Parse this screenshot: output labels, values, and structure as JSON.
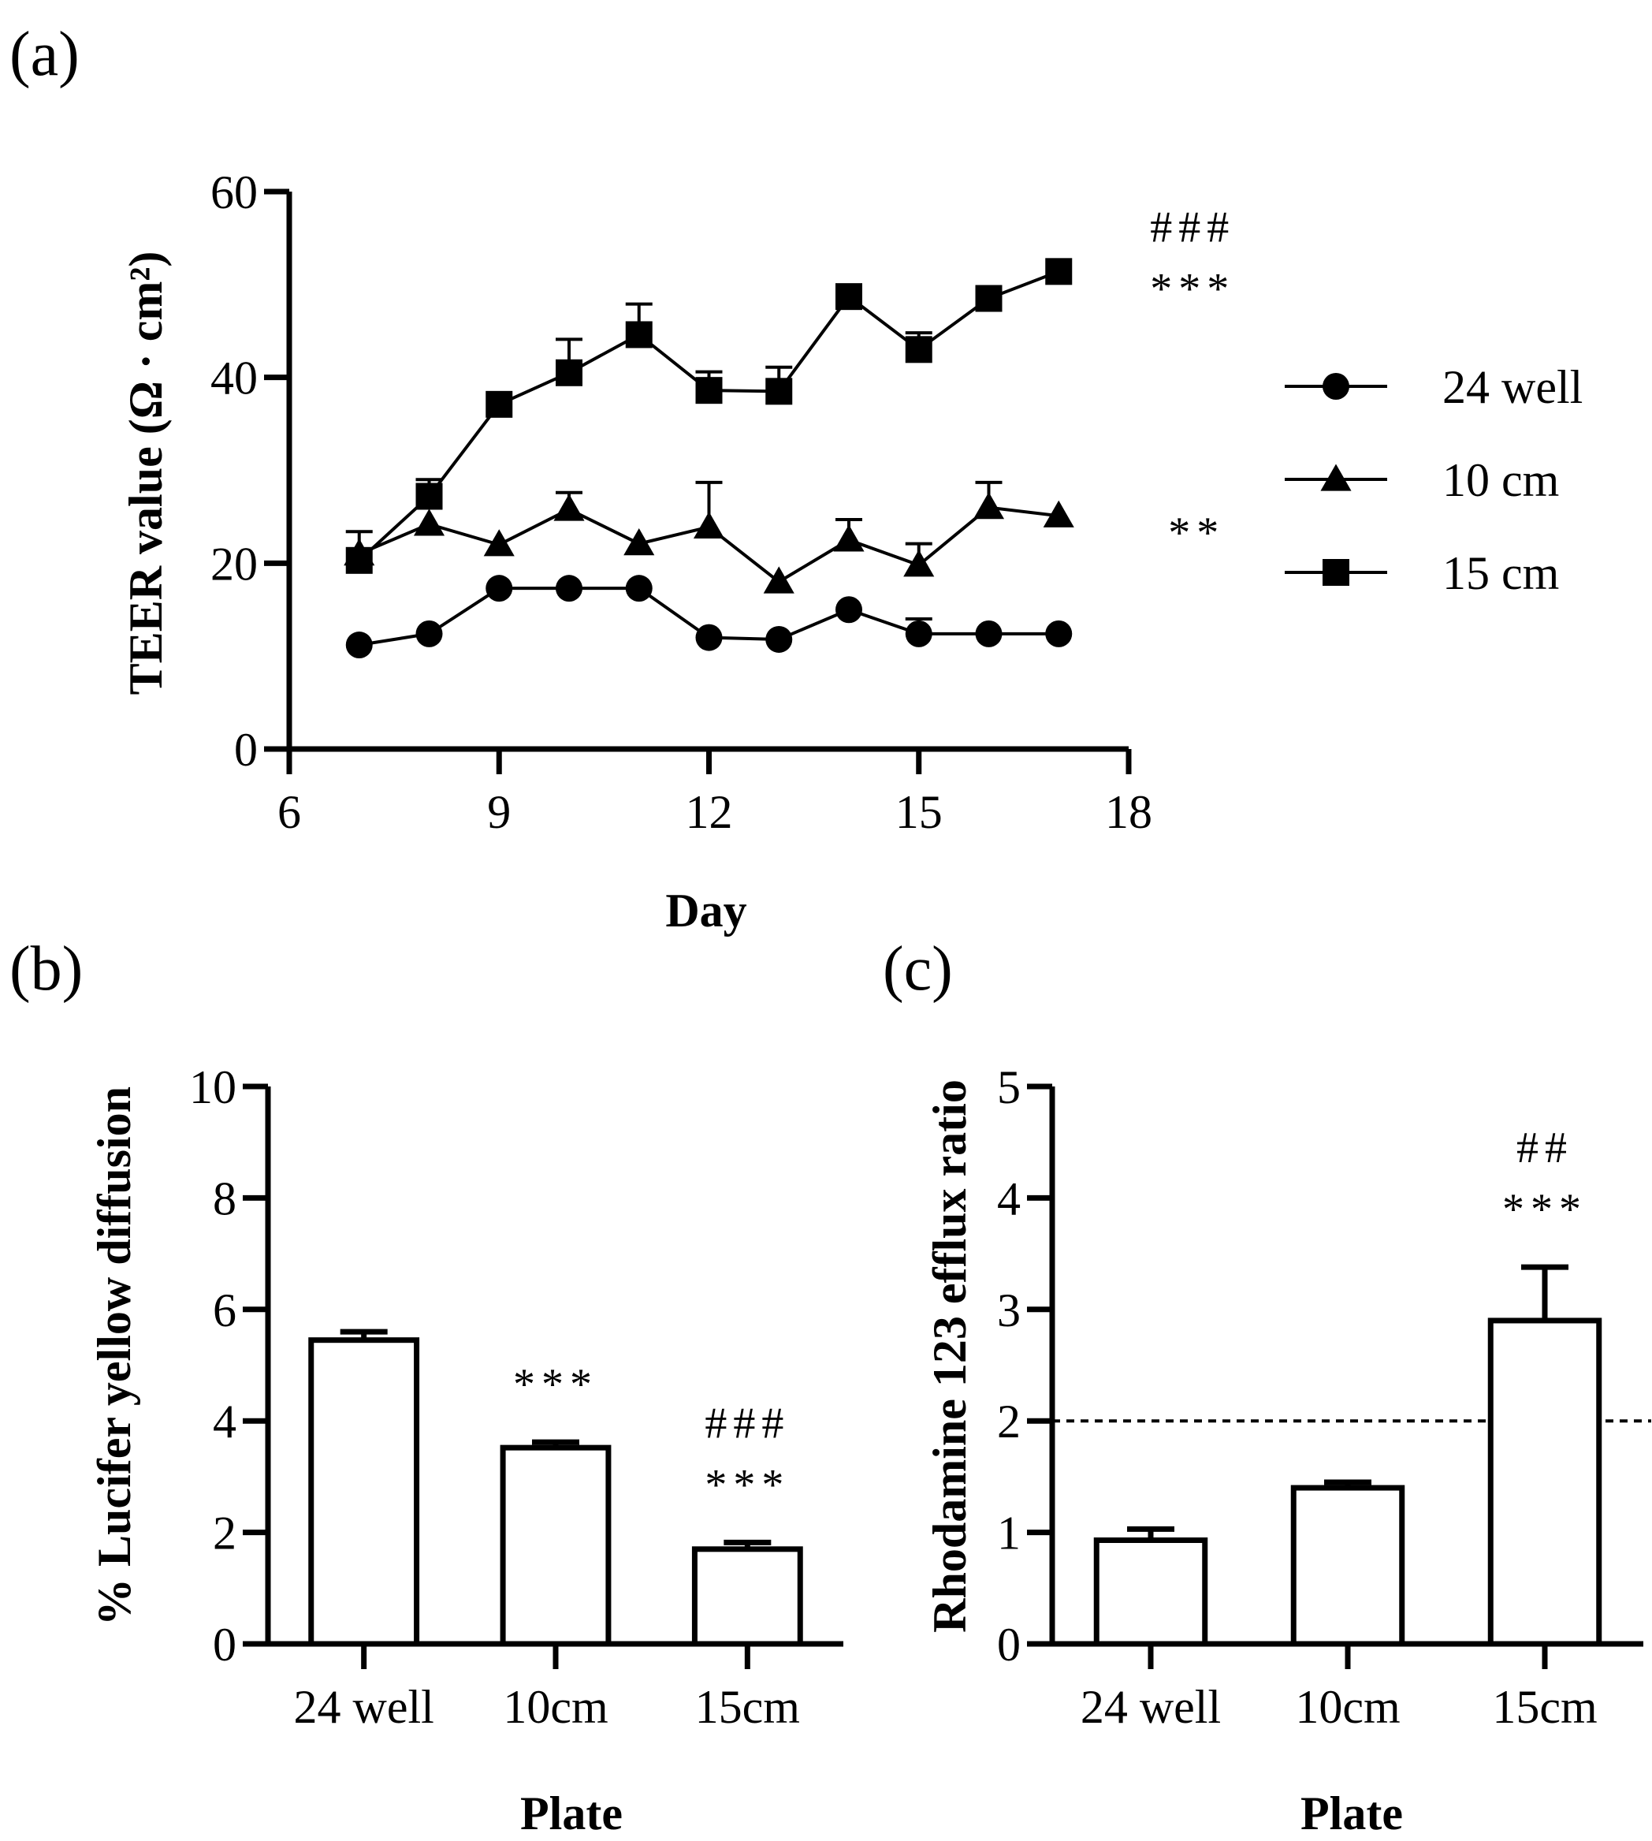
{
  "chart_data": [
    {
      "id": "a",
      "panel_label": "(a)",
      "type": "line",
      "xlabel": "Day",
      "ylabel": "TEER value (Ω · cm²)",
      "xlim": [
        6,
        18
      ],
      "ylim": [
        0,
        60
      ],
      "xticks": [
        6,
        9,
        12,
        15,
        18
      ],
      "yticks": [
        0,
        20,
        40,
        60
      ],
      "x": [
        7,
        8,
        9,
        10,
        11,
        12,
        13,
        14,
        15,
        16,
        17
      ],
      "series": [
        {
          "name": "24 well",
          "marker": "circle",
          "values": [
            11.2,
            12.4,
            17.3,
            17.3,
            17.3,
            12.0,
            11.8,
            15.0,
            12.4,
            12.4,
            12.4
          ],
          "errors": [
            0,
            0,
            0,
            0,
            0,
            0,
            0,
            0,
            1.6,
            0,
            0
          ]
        },
        {
          "name": "10 cm",
          "marker": "triangle",
          "values": [
            21.0,
            24.2,
            22.0,
            25.8,
            22.1,
            23.9,
            18.0,
            22.5,
            19.8,
            26.0,
            25.1
          ],
          "errors": [
            0,
            0,
            0,
            1.8,
            0,
            4.8,
            0,
            2.2,
            2.3,
            2.7,
            0
          ]
        },
        {
          "name": "15 cm",
          "marker": "square",
          "values": [
            20.3,
            27.2,
            37.1,
            40.5,
            44.6,
            38.6,
            38.5,
            48.7,
            43.0,
            48.5,
            51.4
          ],
          "errors": [
            3.1,
            1.8,
            0,
            3.6,
            3.3,
            2.0,
            2.6,
            1.2,
            1.8,
            0,
            0
          ]
        }
      ],
      "annotations": [
        {
          "text": "###",
          "near_series": "15 cm"
        },
        {
          "text": "***",
          "near_series": "15 cm"
        },
        {
          "text": "**",
          "near_series": "10 cm"
        }
      ],
      "legend": {
        "position": "right",
        "entries": [
          "24 well",
          "10 cm",
          "15 cm"
        ]
      }
    },
    {
      "id": "b",
      "panel_label": "(b)",
      "type": "bar",
      "xlabel": "Plate",
      "ylabel": "% Lucifer yellow diffusion",
      "ylim": [
        0,
        10
      ],
      "yticks": [
        0,
        2,
        4,
        6,
        8,
        10
      ],
      "categories": [
        "24 well",
        "10cm",
        "15cm"
      ],
      "values": [
        5.45,
        3.52,
        1.7
      ],
      "errors": [
        0.15,
        0.1,
        0.12
      ],
      "annotations": [
        {
          "category": "10cm",
          "lines": [
            "***"
          ]
        },
        {
          "category": "15cm",
          "lines": [
            "###",
            "***"
          ]
        }
      ]
    },
    {
      "id": "c",
      "panel_label": "(c)",
      "type": "bar",
      "xlabel": "Plate",
      "ylabel": "Rhodamine 123 efflux ratio",
      "ylim": [
        0,
        5
      ],
      "yticks": [
        0,
        1,
        2,
        3,
        4,
        5
      ],
      "categories": [
        "24 well",
        "10cm",
        "15cm"
      ],
      "values": [
        0.93,
        1.4,
        2.9
      ],
      "errors": [
        0.1,
        0.05,
        0.48
      ],
      "reference_line": {
        "y": 2,
        "style": "dashed"
      },
      "annotations": [
        {
          "category": "15cm",
          "lines": [
            "##",
            "***"
          ]
        }
      ]
    }
  ]
}
